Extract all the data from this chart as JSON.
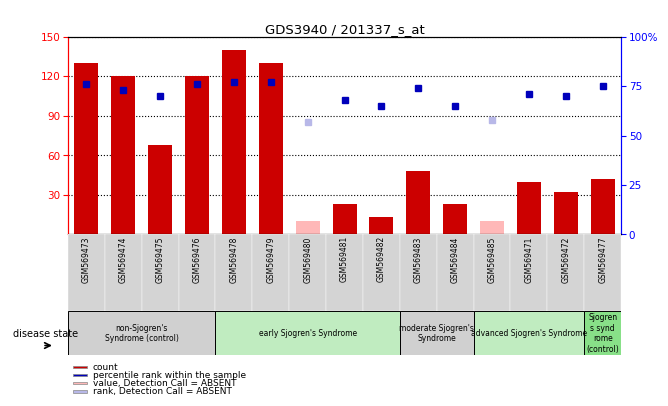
{
  "title": "GDS3940 / 201337_s_at",
  "samples": [
    "GSM569473",
    "GSM569474",
    "GSM569475",
    "GSM569476",
    "GSM569478",
    "GSM569479",
    "GSM569480",
    "GSM569481",
    "GSM569482",
    "GSM569483",
    "GSM569484",
    "GSM569485",
    "GSM569471",
    "GSM569472",
    "GSM569477"
  ],
  "bar_values": [
    130,
    120,
    68,
    120,
    140,
    130,
    null,
    23,
    13,
    48,
    23,
    null,
    40,
    32,
    42
  ],
  "bar_absent_values": [
    null,
    null,
    null,
    null,
    null,
    null,
    10,
    null,
    null,
    null,
    null,
    10,
    null,
    null,
    null
  ],
  "rank_values": [
    76,
    73,
    70,
    76,
    77,
    77,
    null,
    68,
    65,
    74,
    65,
    null,
    71,
    70,
    75
  ],
  "rank_absent_values": [
    null,
    null,
    null,
    null,
    null,
    null,
    57,
    null,
    null,
    null,
    null,
    58,
    null,
    null,
    null
  ],
  "disease_groups": [
    {
      "label": "non-Sjogren's\nSyndrome (control)",
      "start": 0,
      "end": 4,
      "color": "#d0d0d0"
    },
    {
      "label": "early Sjogren's Syndrome",
      "start": 4,
      "end": 9,
      "color": "#c0ecc0"
    },
    {
      "label": "moderate Sjogren's\nSyndrome",
      "start": 9,
      "end": 11,
      "color": "#d0d0d0"
    },
    {
      "label": "advanced Sjogren's Syndrome",
      "start": 11,
      "end": 14,
      "color": "#c0ecc0"
    },
    {
      "label": "Sjogren\ns synd\nrome\n(control)",
      "start": 14,
      "end": 15,
      "color": "#88e088"
    }
  ],
  "ylim_left": [
    0,
    150
  ],
  "ylim_right": [
    0,
    100
  ],
  "yticks_left": [
    30,
    60,
    90,
    120,
    150
  ],
  "yticks_right": [
    0,
    25,
    50,
    75,
    100
  ],
  "bar_color": "#cc0000",
  "bar_absent_color": "#ffb8b8",
  "rank_color": "#0000bb",
  "rank_absent_color": "#b8b8e8",
  "legend_items": [
    {
      "label": "count",
      "color": "#cc0000"
    },
    {
      "label": "percentile rank within the sample",
      "color": "#0000bb"
    },
    {
      "label": "value, Detection Call = ABSENT",
      "color": "#ffb8b8"
    },
    {
      "label": "rank, Detection Call = ABSENT",
      "color": "#b8b8e8"
    }
  ]
}
